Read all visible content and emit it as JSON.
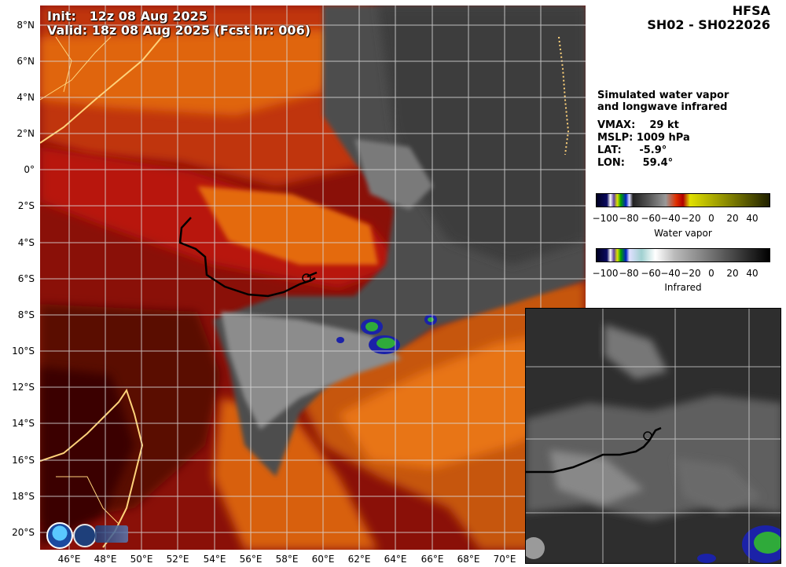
{
  "header": {
    "init_line": "Init:   12z 08 Aug 2025",
    "valid_line": "Valid: 18z 08 Aug 2025 (Fcst hr: 006)"
  },
  "model": {
    "name": "HFSA",
    "storm_id": "SH02 - SH022026"
  },
  "description": {
    "line1": "Simulated water vapor",
    "line2": "and longwave infrared"
  },
  "stats": {
    "vmax": "VMAX:    29 kt",
    "mslp": "MSLP: 1009 hPa",
    "lat": "LAT:     -5.9°",
    "lon": "LON:     59.4°"
  },
  "lat_labels": [
    "8°N",
    "6°N",
    "4°N",
    "2°N",
    "0°",
    "2°S",
    "4°S",
    "6°S",
    "8°S",
    "10°S",
    "12°S",
    "14°S",
    "16°S",
    "18°S",
    "20°S"
  ],
  "lon_labels": [
    "46°E",
    "48°E",
    "50°E",
    "52°E",
    "54°E",
    "56°E",
    "58°E",
    "60°E",
    "62°E",
    "64°E",
    "66°E",
    "68°E",
    "70°E"
  ],
  "colorbars": {
    "water_vapor": {
      "title": "Water vapor",
      "ticks": [
        "−100",
        "−80",
        "−60",
        "−40",
        "−20",
        "0",
        "20",
        "40"
      ]
    },
    "infrared": {
      "title": "Infrared",
      "ticks": [
        "−100",
        "−80",
        "−60",
        "−40",
        "−20",
        "0",
        "20",
        "40"
      ]
    }
  },
  "colors": {
    "wv_dark_red": "#7a0d07",
    "wv_red": "#c81a0a",
    "wv_orange": "#e86a10",
    "cloud_gray": "#5a5a5a",
    "track": "#000000",
    "coastline": "#ffd27a"
  },
  "logos": [
    "noaa-logo",
    "oar-logo"
  ]
}
